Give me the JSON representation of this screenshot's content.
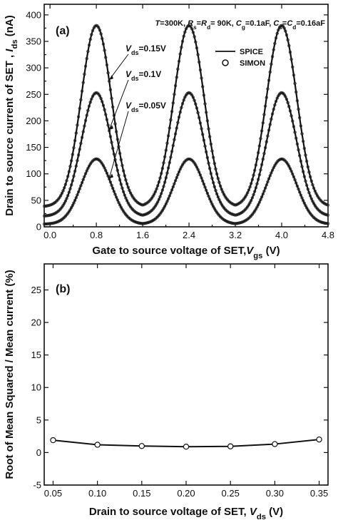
{
  "chart_data": [
    {
      "panel": "(a)",
      "type": "line",
      "annotation": "T=300K, Rs=Rd= 90K, Cg=0.1aF, Cs=Cd=0.16aF",
      "annotation_parts": [
        {
          "t": "T",
          "it": true
        },
        {
          "t": "=300K, "
        },
        {
          "t": "R",
          "it": true
        },
        {
          "t": "s",
          "sub": true
        },
        {
          "t": "="
        },
        {
          "t": "R",
          "it": true
        },
        {
          "t": "d",
          "sub": true
        },
        {
          "t": "= 90K, "
        },
        {
          "t": "C",
          "it": true
        },
        {
          "t": "g",
          "sub": true
        },
        {
          "t": "=0.1aF, "
        },
        {
          "t": "C",
          "it": true
        },
        {
          "t": "s",
          "sub": true
        },
        {
          "t": "="
        },
        {
          "t": "C",
          "it": true
        },
        {
          "t": "d",
          "sub": true
        },
        {
          "t": "=0.16aF"
        }
      ],
      "xlabel": "Gate to source voltage of SET,Vgs (V)",
      "xlabel_parts": [
        {
          "t": "Gate to source voltage of SET,"
        },
        {
          "t": "V",
          "it": true
        },
        {
          "t": "gs",
          "sub": true
        },
        {
          "t": " (V)"
        }
      ],
      "ylabel": "Drain to source current of SET , Ids (nA)",
      "ylabel_parts": [
        {
          "t": "Drain to source current of SET , "
        },
        {
          "t": "I",
          "it": true
        },
        {
          "t": "ds",
          "sub": true
        },
        {
          "t": " (nA)"
        }
      ],
      "xlim": [
        -0.1,
        4.8
      ],
      "ylim": [
        0,
        420
      ],
      "xticks": [
        0.0,
        0.8,
        1.6,
        2.4,
        3.2,
        4.0,
        4.8
      ],
      "xtick_labels": [
        "0.0",
        "0.8",
        "1.6",
        "2.4",
        "3.2",
        "4.0",
        "4.8"
      ],
      "yticks": [
        0,
        50,
        100,
        150,
        200,
        250,
        300,
        350,
        400
      ],
      "ytick_labels": [
        "0",
        "50",
        "100",
        "150",
        "200",
        "250",
        "300",
        "350",
        "400"
      ],
      "peak_centers": [
        0.8,
        2.4,
        4.0
      ],
      "period": 1.6,
      "legend_position": "upper-right",
      "legend": [
        {
          "name": "SPICE",
          "marker": "line"
        },
        {
          "name": "SIMON",
          "marker": "circle"
        }
      ],
      "series": [
        {
          "name": "Vds=0.15V",
          "label_parts": [
            {
              "t": "V",
              "it": true
            },
            {
              "t": "ds",
              "sub": true
            },
            {
              "t": "=0.15V"
            }
          ],
          "peak": 380,
          "valley": 38,
          "value_at_0": 45
        },
        {
          "name": "Vds=0.1V",
          "label_parts": [
            {
              "t": "V",
              "it": true
            },
            {
              "t": "ds",
              "sub": true
            },
            {
              "t": "=0.1V"
            }
          ],
          "peak": 253,
          "valley": 20,
          "value_at_0": 18
        },
        {
          "name": "Vds=0.05V",
          "label_parts": [
            {
              "t": "V",
              "it": true
            },
            {
              "t": "ds",
              "sub": true
            },
            {
              "t": "=0.05V"
            }
          ],
          "peak": 128,
          "valley": 5,
          "value_at_0": 4
        }
      ]
    },
    {
      "panel": "(b)",
      "type": "line",
      "xlabel": "Drain to source voltage of SET, Vds (V)",
      "xlabel_parts": [
        {
          "t": "Drain to source voltage of SET, "
        },
        {
          "t": "V",
          "it": true
        },
        {
          "t": "ds",
          "sub": true
        },
        {
          "t": " (V)"
        }
      ],
      "ylabel": "Root of Mean Squared / Mean current (%)",
      "ylabel_parts": [
        {
          "t": "Root of Mean Squared / Mean current (%)"
        }
      ],
      "xlim": [
        0.04,
        0.36
      ],
      "ylim": [
        -5,
        29
      ],
      "xticks": [
        0.05,
        0.1,
        0.15,
        0.2,
        0.25,
        0.3,
        0.35
      ],
      "xtick_labels": [
        "0.05",
        "0.10",
        "0.15",
        "0.20",
        "0.25",
        "0.30",
        "0.35"
      ],
      "yticks": [
        -5,
        0,
        5,
        10,
        15,
        20,
        25
      ],
      "ytick_labels": [
        "-5",
        "0",
        "5",
        "10",
        "15",
        "20",
        "25"
      ],
      "x": [
        0.05,
        0.1,
        0.15,
        0.2,
        0.25,
        0.3,
        0.35
      ],
      "y": [
        1.9,
        1.2,
        1.0,
        0.9,
        0.95,
        1.3,
        2.0
      ]
    }
  ]
}
